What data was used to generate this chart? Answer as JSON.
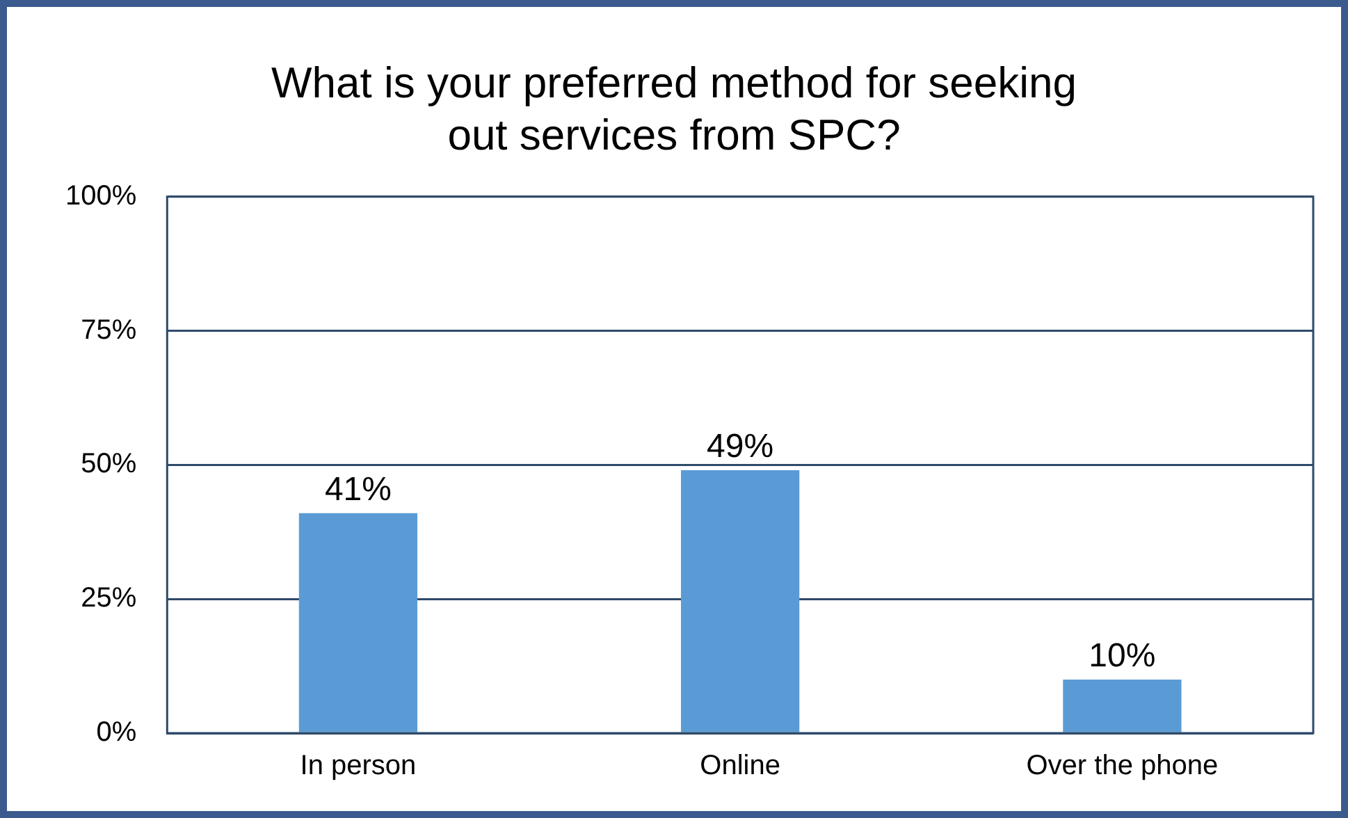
{
  "chart_data": {
    "type": "bar",
    "title": "What is your preferred method for seeking out services from SPC?",
    "categories": [
      "In person",
      "Online",
      "Over the phone"
    ],
    "values": [
      41,
      49,
      10
    ],
    "value_labels": [
      "41%",
      "49%",
      "10%"
    ],
    "color": "#5b9bd5",
    "ylim": [
      0,
      100
    ],
    "yticks": [
      {
        "value": 0,
        "label": "0%"
      },
      {
        "value": 25,
        "label": "25%"
      },
      {
        "value": 50,
        "label": "50%"
      },
      {
        "value": 75,
        "label": "75%"
      },
      {
        "value": 100,
        "label": "100%"
      }
    ],
    "grid": "y",
    "legend": false
  }
}
